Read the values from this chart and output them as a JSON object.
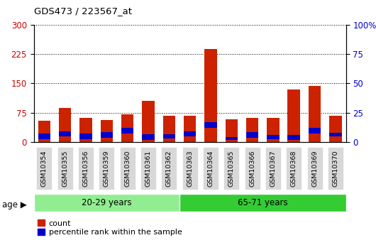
{
  "title": "GDS473 / 223567_at",
  "samples": [
    "GSM10354",
    "GSM10355",
    "GSM10356",
    "GSM10359",
    "GSM10360",
    "GSM10361",
    "GSM10362",
    "GSM10363",
    "GSM10364",
    "GSM10365",
    "GSM10366",
    "GSM10367",
    "GSM10368",
    "GSM10369",
    "GSM10370"
  ],
  "count_values": [
    55,
    88,
    62,
    57,
    70,
    105,
    68,
    68,
    238,
    58,
    62,
    62,
    135,
    143,
    68
  ],
  "percentile_bottom": [
    8,
    14,
    8,
    11,
    22,
    6,
    10,
    14,
    37,
    5,
    11,
    8,
    5,
    22,
    14
  ],
  "percentile_height": [
    14,
    14,
    14,
    14,
    14,
    14,
    10,
    14,
    14,
    7,
    14,
    10,
    14,
    14,
    10
  ],
  "groups": [
    {
      "label": "20-29 years",
      "count": 7,
      "color": "#90ee90"
    },
    {
      "label": "65-71 years",
      "count": 8,
      "color": "#33cc33"
    }
  ],
  "left_axis_color": "#cc0000",
  "right_axis_color": "#0000cc",
  "bar_color": "#cc2200",
  "percentile_color": "#0000cc",
  "ylim_left": [
    0,
    300
  ],
  "ylim_right": [
    0,
    100
  ],
  "yticks_left": [
    0,
    75,
    150,
    225,
    300
  ],
  "yticks_right": [
    0,
    25,
    50,
    75,
    100
  ],
  "legend_count": "count",
  "legend_percentile": "percentile rank within the sample",
  "tick_bg_color": "#d8d8d8"
}
